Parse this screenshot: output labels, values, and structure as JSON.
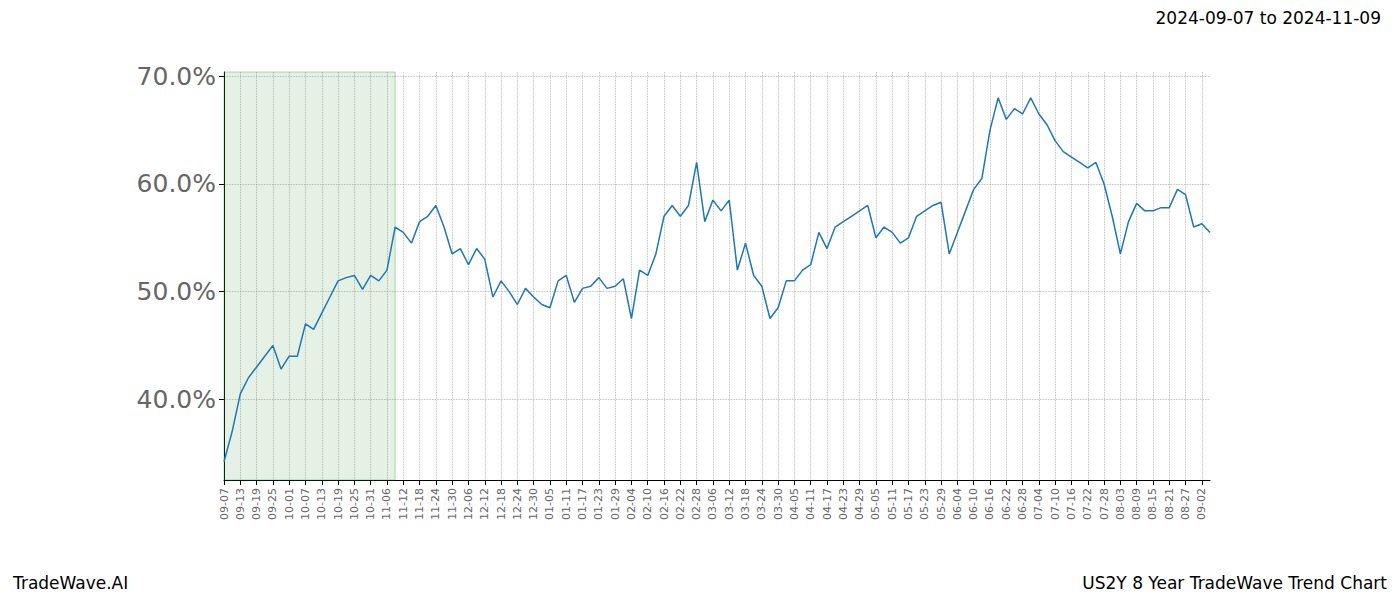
{
  "chart_data": {
    "type": "line",
    "title": "2024-09-07 to 2024-11-09",
    "subtitle": "US2Y 8 Year TradeWave Trend Chart",
    "source": "TradeWave.AI",
    "highlight": {
      "from": "09-07",
      "to": "11-09"
    },
    "categories": [
      "09-07",
      null,
      "09-13",
      null,
      "09-19",
      null,
      "09-25",
      null,
      "10-01",
      null,
      "10-07",
      null,
      "10-13",
      null,
      "10-19",
      null,
      "10-25",
      null,
      "10-31",
      null,
      "11-06",
      null,
      "11-12",
      null,
      "11-18",
      null,
      "11-24",
      null,
      "11-30",
      null,
      "12-06",
      null,
      "12-12",
      null,
      "12-18",
      null,
      "12-24",
      null,
      "12-30",
      null,
      "01-05",
      null,
      "01-11",
      null,
      "01-17",
      null,
      "01-23",
      null,
      "01-29",
      null,
      "02-04",
      null,
      "02-10",
      null,
      "02-16",
      null,
      "02-22",
      null,
      "02-28",
      null,
      "03-06",
      null,
      "03-12",
      null,
      "03-18",
      null,
      "03-24",
      null,
      "03-30",
      null,
      "04-05",
      null,
      "04-11",
      null,
      "04-17",
      null,
      "04-23",
      null,
      "04-29",
      null,
      "05-05",
      null,
      "05-11",
      null,
      "05-17",
      null,
      "05-23",
      null,
      "05-29",
      null,
      "06-04",
      null,
      "06-10",
      null,
      "06-16",
      null,
      "06-22",
      null,
      "06-28",
      null,
      "07-04",
      null,
      "07-10",
      null,
      "07-16",
      null,
      "07-22",
      null,
      "07-28",
      null,
      "08-03",
      null,
      "08-09",
      null,
      "08-15",
      null,
      "08-21",
      null,
      "08-27",
      null,
      "09-02",
      null
    ],
    "values": [
      34.2,
      37.0,
      40.5,
      42.0,
      43.0,
      44.0,
      45.0,
      42.8,
      44.0,
      44.0,
      47.0,
      46.5,
      48.0,
      49.5,
      51.0,
      51.3,
      51.5,
      50.2,
      51.5,
      51.0,
      52.0,
      56.0,
      55.5,
      54.5,
      56.5,
      57.0,
      58.0,
      56.0,
      53.5,
      54.0,
      52.5,
      54.0,
      53.0,
      49.5,
      51.0,
      50.0,
      48.8,
      50.3,
      49.5,
      48.8,
      48.5,
      51.0,
      51.5,
      49.0,
      50.3,
      50.5,
      51.3,
      50.3,
      50.5,
      51.2,
      47.5,
      52.0,
      51.5,
      53.5,
      57.0,
      58.0,
      57.0,
      58.0,
      62.0,
      56.5,
      58.5,
      57.5,
      58.5,
      52.0,
      54.5,
      51.5,
      50.5,
      47.5,
      48.5,
      51.0,
      51.0,
      52.0,
      52.5,
      55.5,
      54.0,
      56.0,
      56.5,
      57.0,
      57.5,
      58.0,
      55.0,
      56.0,
      55.5,
      54.5,
      55.0,
      57.0,
      57.5,
      58.0,
      58.3,
      53.5,
      55.5,
      57.5,
      59.5,
      60.5,
      65.0,
      68.0,
      66.0,
      67.0,
      66.5,
      68.0,
      66.5,
      65.5,
      64.0,
      63.0,
      62.5,
      62.0,
      61.5,
      62.0,
      60.0,
      57.0,
      53.5,
      56.5,
      58.2,
      57.5,
      57.5,
      57.8,
      57.8,
      59.5,
      59.0,
      56.0,
      56.3,
      55.5
    ],
    "color": "#1f77b4",
    "ylim": [
      32.5,
      70.4
    ],
    "yticks": [
      {
        "value": 40,
        "label": "40.0%"
      },
      {
        "value": 50,
        "label": "50.0%"
      },
      {
        "value": 60,
        "label": "60.0%"
      },
      {
        "value": 70,
        "label": "70.0%"
      }
    ],
    "grid": true
  }
}
